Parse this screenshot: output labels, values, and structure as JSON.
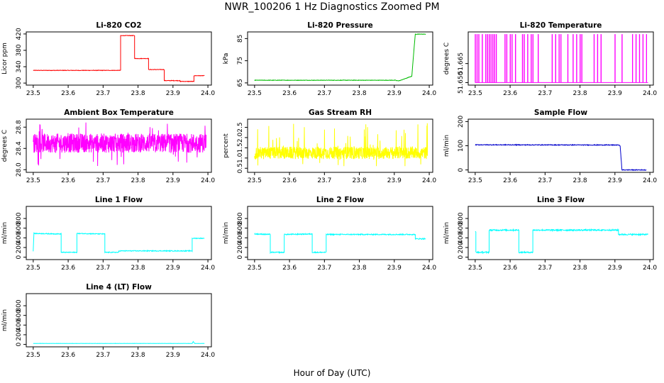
{
  "figure": {
    "title": "NWR_100206  1 Hz Diagnostics Zoomed PM",
    "xlabel": "Hour of Day (UTC)"
  },
  "chart_data": [
    {
      "type": "line",
      "title": "Li-820 CO2",
      "ylabel": "Licor ppm",
      "color": "#ff0000",
      "xlim": [
        23.48,
        24.01
      ],
      "ylim": [
        295,
        425
      ],
      "xticks": [
        23.5,
        23.6,
        23.7,
        23.8,
        23.9,
        24.0
      ],
      "xtick_labels": [
        "23.5",
        "23.6",
        "23.7",
        "23.8",
        "23.9",
        "24.0"
      ],
      "yticks": [
        300,
        340,
        380,
        420
      ],
      "ytick_labels": [
        "300",
        "340",
        "380",
        "420"
      ],
      "series": [
        {
          "name": "CO2",
          "x": [
            23.5,
            23.75,
            23.75,
            23.79,
            23.79,
            23.83,
            23.83,
            23.875,
            23.875,
            23.92,
            23.92,
            23.96,
            23.96,
            23.99
          ],
          "y": [
            331,
            331,
            416,
            416,
            360,
            360,
            333,
            333,
            306,
            306,
            304,
            304,
            318,
            318
          ]
        }
      ],
      "noise": 0.6
    },
    {
      "type": "line",
      "title": "Li-820 Pressure",
      "ylabel": "kPa",
      "color": "#00bb00",
      "xlim": [
        23.48,
        24.01
      ],
      "ylim": [
        64,
        88
      ],
      "xticks": [
        23.5,
        23.6,
        23.7,
        23.8,
        23.9,
        24.0
      ],
      "xtick_labels": [
        "23.5",
        "23.6",
        "23.7",
        "23.8",
        "23.9",
        "24.0"
      ],
      "yticks": [
        65,
        75,
        85
      ],
      "ytick_labels": [
        "65",
        "75",
        "85"
      ],
      "series": [
        {
          "name": "Pressure",
          "x": [
            23.5,
            23.905,
            23.905,
            23.915,
            23.95,
            23.96,
            23.99
          ],
          "y": [
            66.2,
            66.2,
            66.0,
            66.0,
            68,
            87,
            87
          ]
        }
      ],
      "noise": 0.1
    },
    {
      "type": "line",
      "title": "Li-820 Temperature",
      "ylabel": "degrees C",
      "color": "#ff00ff",
      "xlim": [
        23.48,
        24.01
      ],
      "ylim": [
        51.648,
        51.69
      ],
      "xticks": [
        23.5,
        23.6,
        23.7,
        23.8,
        23.9,
        24.0
      ],
      "xtick_labels": [
        "23.5",
        "23.6",
        "23.7",
        "23.8",
        "23.9",
        "24.0"
      ],
      "yticks": [
        51.65,
        51.665
      ],
      "ytick_labels": [
        "51.650",
        "51.665"
      ],
      "base": 51.65,
      "high": 51.688,
      "spikes_x": [
        23.5,
        23.505,
        23.51,
        23.52,
        23.53,
        23.535,
        23.54,
        23.545,
        23.55,
        23.555,
        23.56,
        23.585,
        23.59,
        23.6,
        23.605,
        23.615,
        23.635,
        23.64,
        23.65,
        23.66,
        23.665,
        23.68,
        23.72,
        23.73,
        23.74,
        23.745,
        23.765,
        23.78,
        23.79,
        23.8,
        23.805,
        23.84,
        23.85,
        23.86,
        23.9,
        23.92,
        23.95,
        23.96,
        23.97,
        23.98,
        23.99
      ]
    },
    {
      "type": "line",
      "title": "Ambient Box Temperature",
      "ylabel": "degrees C",
      "color": "#ff00ff",
      "xlim": [
        23.48,
        24.01
      ],
      "ylim": [
        27.95,
        28.95
      ],
      "xticks": [
        23.5,
        23.6,
        23.7,
        23.8,
        23.9,
        24.0
      ],
      "xtick_labels": [
        "23.5",
        "23.6",
        "23.7",
        "23.8",
        "23.9",
        "24.0"
      ],
      "yticks": [
        28.0,
        28.4,
        28.8
      ],
      "ytick_labels": [
        "28.0",
        "28.4",
        "28.8"
      ],
      "mean": 28.5,
      "band": 0.18,
      "spike_range": [
        28.05,
        28.9
      ]
    },
    {
      "type": "line",
      "title": "Gas Stream RH",
      "ylabel": "percent",
      "color": "#ffff00",
      "xlim": [
        23.48,
        24.01
      ],
      "ylim": [
        0.3,
        2.9
      ],
      "xticks": [
        23.5,
        23.6,
        23.7,
        23.8,
        23.9,
        24.0
      ],
      "xtick_labels": [
        "23.5",
        "23.6",
        "23.7",
        "23.8",
        "23.9",
        "24.0"
      ],
      "yticks": [
        0.5,
        1.0,
        1.5,
        2.0,
        2.5
      ],
      "ytick_labels": [
        "0.5",
        "1.0",
        "1.5",
        "2.0",
        "2.5"
      ],
      "mean": 1.25,
      "band": 0.3,
      "spike_range": [
        0.6,
        2.7
      ]
    },
    {
      "type": "line",
      "title": "Sample Flow",
      "ylabel": "ml/min",
      "color": "#0000cc",
      "xlim": [
        23.48,
        24.01
      ],
      "ylim": [
        -10,
        210
      ],
      "xticks": [
        23.5,
        23.6,
        23.7,
        23.8,
        23.9,
        24.0
      ],
      "xtick_labels": [
        "23.5",
        "23.6",
        "23.7",
        "23.8",
        "23.9",
        "24.0"
      ],
      "yticks": [
        0,
        100,
        200
      ],
      "ytick_labels": [
        "0",
        "100",
        "200"
      ],
      "series": [
        {
          "name": "Flow",
          "x": [
            23.5,
            23.91,
            23.915,
            23.92,
            23.99
          ],
          "y": [
            104,
            103,
            100,
            0,
            0
          ]
        }
      ],
      "noise": 1.5
    },
    {
      "type": "line",
      "title": "Line 1 Flow",
      "ylabel": "ml/min",
      "color": "#00ffff",
      "xlim": [
        23.48,
        24.01
      ],
      "ylim": [
        -50,
        1050
      ],
      "xticks": [
        23.5,
        23.6,
        23.7,
        23.8,
        23.9,
        24.0
      ],
      "xtick_labels": [
        "23.5",
        "23.6",
        "23.7",
        "23.8",
        "23.9",
        "24.0"
      ],
      "yticks": [
        0,
        200,
        400,
        600,
        800
      ],
      "ytick_labels": [
        "0",
        "200",
        "400",
        "600",
        "800"
      ],
      "series": [
        {
          "name": "Line 1",
          "x": [
            23.5,
            23.502,
            23.502,
            23.58,
            23.58,
            23.625,
            23.625,
            23.705,
            23.705,
            23.745,
            23.745,
            23.955,
            23.955,
            23.99
          ],
          "y": [
            120,
            490,
            490,
            480,
            100,
            100,
            490,
            480,
            100,
            100,
            130,
            130,
            390,
            390
          ]
        }
      ],
      "noise": 8
    },
    {
      "type": "line",
      "title": "Line 2 Flow",
      "ylabel": "ml/min",
      "color": "#00ffff",
      "xlim": [
        23.48,
        24.01
      ],
      "ylim": [
        -50,
        1050
      ],
      "xticks": [
        23.5,
        23.6,
        23.7,
        23.8,
        23.9,
        24.0
      ],
      "xtick_labels": [
        "23.5",
        "23.6",
        "23.7",
        "23.8",
        "23.9",
        "24.0"
      ],
      "yticks": [
        0,
        200,
        400,
        600,
        800
      ],
      "ytick_labels": [
        "0",
        "200",
        "400",
        "600",
        "800"
      ],
      "series": [
        {
          "name": "Line 2",
          "x": [
            23.5,
            23.545,
            23.545,
            23.585,
            23.585,
            23.665,
            23.665,
            23.705,
            23.705,
            23.96,
            23.96,
            23.99
          ],
          "y": [
            480,
            470,
            100,
            100,
            470,
            480,
            100,
            100,
            470,
            470,
            380,
            380
          ]
        }
      ],
      "noise": 10
    },
    {
      "type": "line",
      "title": "Line 3 Flow",
      "ylabel": "ml/min",
      "color": "#00ffff",
      "xlim": [
        23.48,
        24.01
      ],
      "ylim": [
        -50,
        1050
      ],
      "xticks": [
        23.5,
        23.6,
        23.7,
        23.8,
        23.9,
        24.0
      ],
      "xtick_labels": [
        "23.5",
        "23.6",
        "23.7",
        "23.8",
        "23.9",
        "24.0"
      ],
      "yticks": [
        0,
        200,
        400,
        600,
        800
      ],
      "ytick_labels": [
        "0",
        "200",
        "400",
        "600",
        "800"
      ],
      "series": [
        {
          "name": "Line 3",
          "x": [
            23.5,
            23.502,
            23.502,
            23.54,
            23.54,
            23.625,
            23.625,
            23.665,
            23.665,
            23.91,
            23.91,
            23.995
          ],
          "y": [
            520,
            520,
            100,
            100,
            560,
            560,
            100,
            100,
            560,
            560,
            470,
            470
          ]
        }
      ],
      "noise": 14
    },
    {
      "type": "line",
      "title": "Line 4 (LT) Flow",
      "ylabel": "ml/min",
      "color": "#00ffff",
      "xlim": [
        23.48,
        24.01
      ],
      "ylim": [
        -50,
        1050
      ],
      "xticks": [
        23.5,
        23.6,
        23.7,
        23.8,
        23.9,
        24.0
      ],
      "xtick_labels": [
        "23.5",
        "23.6",
        "23.7",
        "23.8",
        "23.9",
        "24.0"
      ],
      "yticks": [
        0,
        200,
        400,
        600,
        800
      ],
      "ytick_labels": [
        "0",
        "200",
        "400",
        "600",
        "800"
      ],
      "series": [
        {
          "name": "Line 4",
          "x": [
            23.5,
            23.955,
            23.958,
            23.962,
            23.99
          ],
          "y": [
            20,
            20,
            60,
            20,
            20
          ]
        }
      ],
      "noise": 2
    }
  ]
}
